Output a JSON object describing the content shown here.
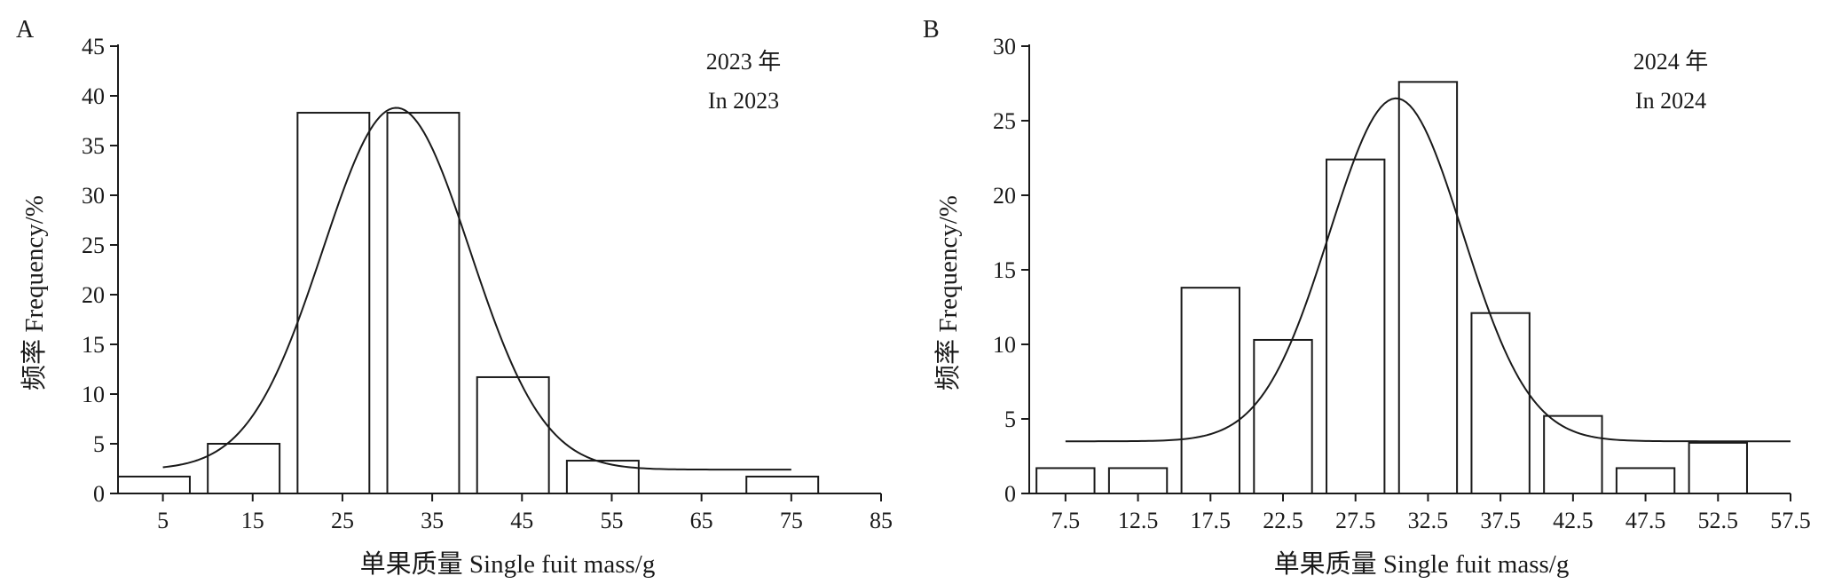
{
  "chart_data": [
    {
      "type": "bar",
      "panel_label": "A",
      "annotation_lines": [
        "2023 年",
        "In 2023"
      ],
      "xlabel": "单果质量 Single fuit mass/g",
      "ylabel": "频率 Frequency/%",
      "ylim": [
        0,
        45
      ],
      "yticks": [
        0,
        5,
        10,
        15,
        20,
        25,
        30,
        35,
        40,
        45
      ],
      "xlim": [
        0,
        85
      ],
      "xticks": [
        5,
        15,
        25,
        35,
        45,
        55,
        65,
        75,
        85
      ],
      "bar_ranges": [
        [
          0,
          8
        ],
        [
          10,
          18
        ],
        [
          20,
          28
        ],
        [
          30,
          38
        ],
        [
          40,
          48
        ],
        [
          50,
          58
        ],
        [
          70,
          78
        ]
      ],
      "values": [
        1.7,
        5.0,
        38.3,
        38.3,
        11.7,
        3.3,
        1.7
      ],
      "fit_curve": {
        "type": "normal",
        "mean": 31,
        "sd": 8.2,
        "amplitude": 36.4,
        "baseline": 2.4,
        "x_range": [
          5,
          75
        ]
      },
      "grid": false
    },
    {
      "type": "bar",
      "panel_label": "B",
      "annotation_lines": [
        "2024 年",
        "In 2024"
      ],
      "xlabel": "单果质量 Single fuit mass/g",
      "ylabel": "频率 Frequency/%",
      "ylim": [
        0,
        30
      ],
      "yticks": [
        0,
        5,
        10,
        15,
        20,
        25,
        30
      ],
      "xlim": [
        5,
        57.5
      ],
      "xticks": [
        7.5,
        12.5,
        17.5,
        22.5,
        27.5,
        32.5,
        37.5,
        42.5,
        47.5,
        52.5,
        57.5
      ],
      "bar_ranges": [
        [
          5.5,
          9.5
        ],
        [
          10.5,
          14.5
        ],
        [
          15.5,
          19.5
        ],
        [
          20.5,
          24.5
        ],
        [
          25.5,
          29.5
        ],
        [
          30.5,
          34.5
        ],
        [
          35.5,
          39.5
        ],
        [
          40.5,
          44.5
        ],
        [
          45.5,
          49.5
        ],
        [
          50.5,
          54.5
        ]
      ],
      "values": [
        1.7,
        1.7,
        13.8,
        10.3,
        22.4,
        27.6,
        12.1,
        5.2,
        1.7,
        3.4
      ],
      "fit_curve": {
        "type": "normal",
        "mean": 30.3,
        "sd": 4.6,
        "amplitude": 23.0,
        "baseline": 3.5,
        "x_range": [
          7.5,
          57.5
        ]
      },
      "grid": false
    }
  ]
}
